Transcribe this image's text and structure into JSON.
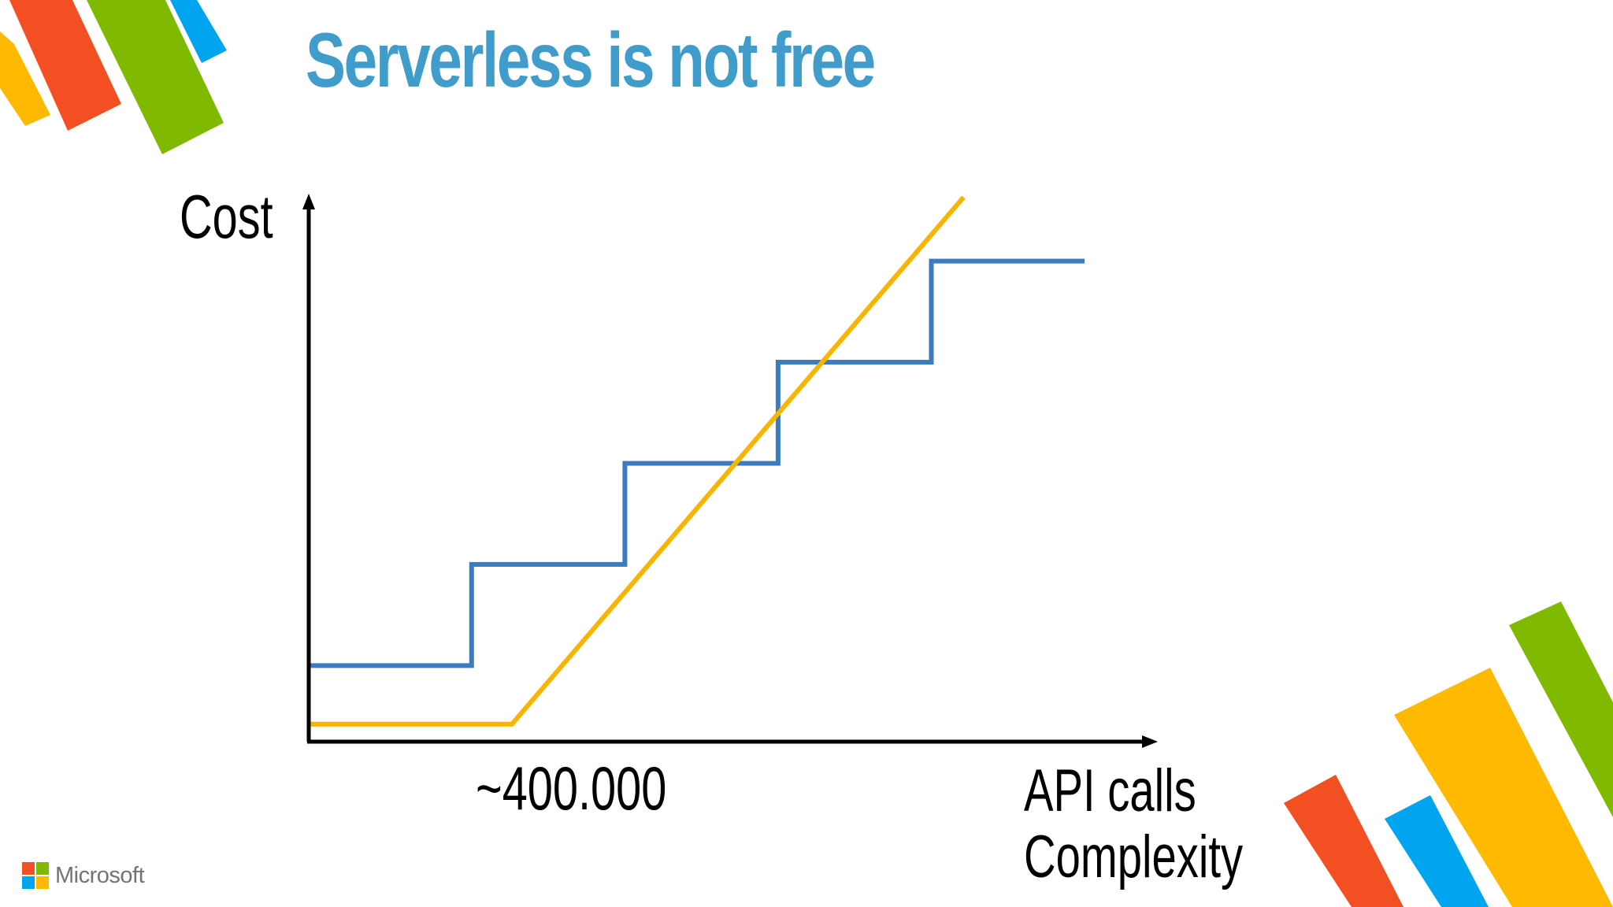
{
  "slide": {
    "title": "Serverless is not free",
    "title_color": "#3f9ccb"
  },
  "branding": {
    "logo_text": "Microsoft",
    "logo_colors": [
      "#f25022",
      "#7fba00",
      "#00a4ef",
      "#ffb900"
    ],
    "decor_colors": {
      "orange": "#f25022",
      "green": "#7fba00",
      "blue": "#00a4ef",
      "yellow": "#ffb900"
    }
  },
  "chart_data": {
    "type": "line",
    "title": "",
    "ylabel": "Cost",
    "xlabel_lines": [
      "API calls",
      "Complexity"
    ],
    "x_tick_label": "~400.000",
    "xlim": [
      0,
      100
    ],
    "ylim": [
      0,
      100
    ],
    "grid": false,
    "series": [
      {
        "color": "#3c7bbd",
        "step": true,
        "x": [
          0,
          20,
          20,
          39,
          39,
          58,
          58,
          77,
          77,
          96
        ],
        "y": [
          14,
          14,
          33,
          33,
          52,
          52,
          71,
          71,
          90,
          90
        ]
      },
      {
        "color": "#f7b500",
        "step": false,
        "x": [
          0,
          25,
          81
        ],
        "y": [
          3,
          3,
          102
        ]
      }
    ]
  }
}
